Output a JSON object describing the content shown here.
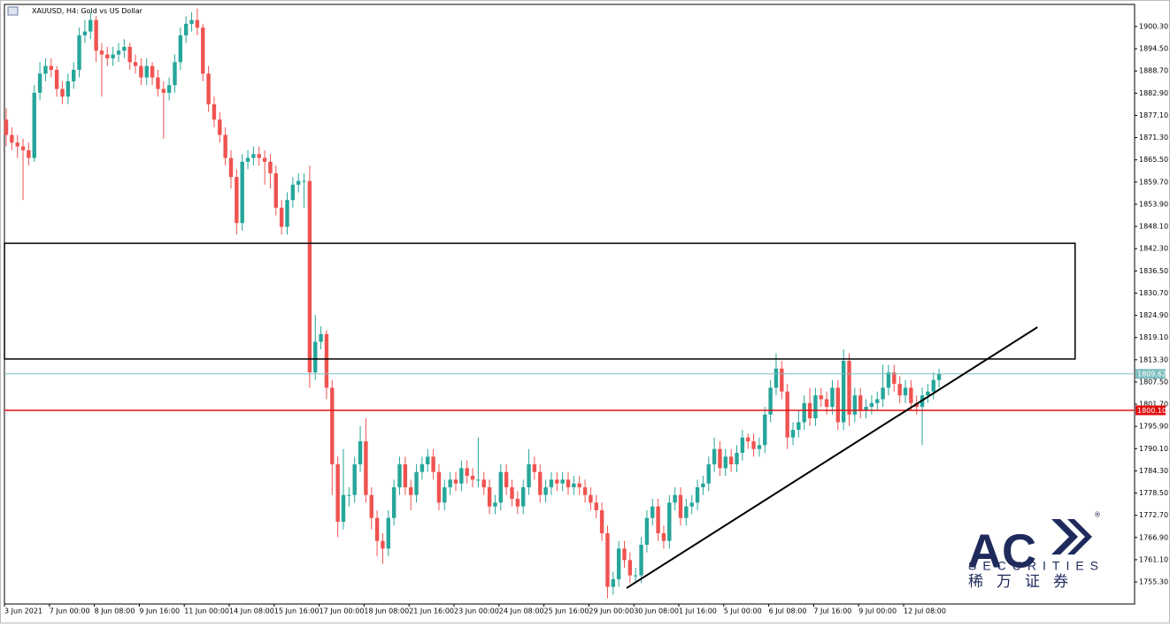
{
  "chart_data": {
    "type": "candlestick",
    "title": "XAUUSD, H4:  Gold vs US Dollar",
    "categories": [
      "3 Jun 2021",
      null,
      null,
      null,
      null,
      null,
      null,
      null,
      "7 Jun 00:00",
      null,
      null,
      null,
      null,
      null,
      null,
      null,
      "8 Jun 08:00",
      null,
      null,
      null,
      null,
      null,
      null,
      null,
      "9 Jun 16:00",
      null,
      null,
      null,
      null,
      null,
      null,
      null,
      "11 Jun 00:00",
      null,
      null,
      null,
      null,
      null,
      null,
      null,
      "14 Jun 08:00",
      null,
      null,
      null,
      null,
      null,
      null,
      null,
      "15 Jun 16:00",
      null,
      null,
      null,
      null,
      null,
      null,
      null,
      "17 Jun 00:00",
      null,
      null,
      null,
      null,
      null,
      null,
      null,
      "18 Jun 08:00",
      null,
      null,
      null,
      null,
      null,
      null,
      null,
      "21 Jun 16:00",
      null,
      null,
      null,
      null,
      null,
      null,
      null,
      "23 Jun 00:00",
      null,
      null,
      null,
      null,
      null,
      null,
      null,
      "24 Jun 08:00",
      null,
      null,
      null,
      null,
      null,
      null,
      null,
      "25 Jun 16:00",
      null,
      null,
      null,
      null,
      null,
      null,
      null,
      "29 Jun 00:00",
      null,
      null,
      null,
      null,
      null,
      null,
      null,
      "30 Jun 08:00",
      null,
      null,
      null,
      null,
      null,
      null,
      null,
      "1 Jul 16:00",
      null,
      null,
      null,
      null,
      null,
      null,
      null,
      "5 Jul 00:00",
      null,
      null,
      null,
      null,
      null,
      null,
      null,
      "6 Jul 08:00",
      null,
      null,
      null,
      null,
      null,
      null,
      null,
      "7 Jul 16:00",
      null,
      null,
      null,
      null,
      null,
      null,
      null,
      "9 Jul 00:00",
      null,
      null,
      null,
      null,
      null,
      null,
      null,
      "12 Jul 08:00",
      null,
      null,
      null,
      null,
      null,
      null
    ],
    "open": [
      1876,
      1872,
      1870,
      1869,
      1868,
      1866,
      1883,
      1888,
      1890,
      1889,
      1884,
      1882,
      1886,
      1889,
      1898,
      1899,
      1902,
      1894,
      1893,
      1892,
      1893,
      1894,
      1895,
      1891,
      1890,
      1887,
      1890,
      1887,
      1884,
      1883,
      1885,
      1891,
      1898,
      1901,
      1902,
      1900,
      1888,
      1880,
      1876,
      1872,
      1866,
      1861,
      1849,
      1865,
      1866,
      1867,
      1866,
      1865,
      1862,
      1853,
      1848,
      1855,
      1859,
      1860,
      1860,
      1810,
      1818,
      1820,
      1806,
      1786,
      1771,
      1778,
      1778,
      1786,
      1792,
      1778,
      1772,
      1766,
      1764,
      1772,
      1780,
      1786,
      1780,
      1778,
      1784,
      1786,
      1788,
      1784,
      1776,
      1780,
      1782,
      1781,
      1785,
      1783,
      1782,
      1782,
      1780,
      1775,
      1776,
      1784,
      1780,
      1777,
      1775,
      1780,
      1786,
      1784,
      1778,
      1780,
      1782,
      1781,
      1782,
      1780,
      1781,
      1780,
      1778,
      1776,
      1774,
      1768,
      1754,
      1756,
      1764,
      1761,
      1757,
      1757,
      1765,
      1772,
      1775,
      1768,
      1766,
      1776,
      1778,
      1772,
      1775,
      1776,
      1780,
      1781,
      1786,
      1790,
      1785,
      1788,
      1786,
      1789,
      1793,
      1792,
      1790,
      1791,
      1799,
      1806,
      1811,
      1805,
      1793,
      1795,
      1797,
      1802,
      1798,
      1804,
      1803,
      1801,
      1806,
      1797,
      1813,
      1799,
      1804,
      1800,
      1801,
      1802,
      1803,
      1806,
      1810,
      1807,
      1804,
      1806,
      1802,
      1801,
      1804,
      1805,
      1808
    ],
    "high": [
      1879,
      1874,
      1872,
      1871,
      1870,
      1885,
      1891,
      1892,
      1892,
      1890,
      1886,
      1888,
      1891,
      1900,
      1902,
      1904,
      1903,
      1896,
      1895,
      1895,
      1896,
      1897,
      1896,
      1893,
      1892,
      1892,
      1891,
      1889,
      1886,
      1887,
      1893,
      1900,
      1903,
      1904,
      1905,
      1901,
      1890,
      1882,
      1878,
      1874,
      1868,
      1863,
      1867,
      1868,
      1869,
      1869,
      1868,
      1867,
      1864,
      1855,
      1857,
      1861,
      1862,
      1862,
      1864,
      1825,
      1822,
      1821,
      1808,
      1788,
      1790,
      1780,
      1788,
      1796,
      1798,
      1780,
      1774,
      1768,
      1774,
      1782,
      1788,
      1788,
      1782,
      1786,
      1788,
      1790,
      1790,
      1786,
      1782,
      1784,
      1784,
      1787,
      1787,
      1785,
      1793,
      1784,
      1782,
      1778,
      1786,
      1786,
      1782,
      1779,
      1782,
      1790,
      1788,
      1786,
      1782,
      1784,
      1784,
      1784,
      1784,
      1783,
      1783,
      1782,
      1780,
      1778,
      1776,
      1770,
      1758,
      1766,
      1766,
      1763,
      1759,
      1767,
      1774,
      1777,
      1777,
      1770,
      1778,
      1780,
      1780,
      1777,
      1778,
      1782,
      1783,
      1788,
      1793,
      1792,
      1790,
      1790,
      1791,
      1795,
      1794,
      1794,
      1793,
      1801,
      1808,
      1815,
      1813,
      1807,
      1797,
      1800,
      1804,
      1806,
      1806,
      1806,
      1805,
      1808,
      1808,
      1816,
      1815,
      1806,
      1806,
      1803,
      1804,
      1805,
      1812,
      1812,
      1812,
      1809,
      1808,
      1808,
      1804,
      1806,
      1807,
      1810,
      1811
    ],
    "low": [
      1869,
      1868,
      1866,
      1855,
      1864,
      1865,
      1881,
      1886,
      1887,
      1882,
      1880,
      1880,
      1884,
      1887,
      1896,
      1897,
      1891,
      1882,
      1890,
      1890,
      1891,
      1892,
      1889,
      1888,
      1885,
      1885,
      1885,
      1882,
      1871,
      1881,
      1883,
      1889,
      1896,
      1899,
      1898,
      1886,
      1878,
      1874,
      1870,
      1864,
      1858,
      1846,
      1847,
      1863,
      1864,
      1864,
      1859,
      1858,
      1851,
      1846,
      1846,
      1853,
      1857,
      1853,
      1806,
      1808,
      1816,
      1803,
      1778,
      1767,
      1769,
      1775,
      1776,
      1784,
      1776,
      1769,
      1762,
      1760,
      1762,
      1770,
      1778,
      1778,
      1774,
      1776,
      1782,
      1784,
      1782,
      1774,
      1774,
      1778,
      1779,
      1779,
      1781,
      1780,
      1780,
      1778,
      1773,
      1773,
      1774,
      1778,
      1775,
      1773,
      1773,
      1778,
      1782,
      1776,
      1776,
      1778,
      1779,
      1779,
      1778,
      1778,
      1778,
      1776,
      1774,
      1772,
      1766,
      1751,
      1752,
      1754,
      1759,
      1755,
      1755,
      1755,
      1763,
      1770,
      1766,
      1764,
      1764,
      1774,
      1770,
      1770,
      1773,
      1774,
      1778,
      1779,
      1784,
      1783,
      1783,
      1784,
      1784,
      1787,
      1790,
      1788,
      1788,
      1789,
      1797,
      1804,
      1803,
      1790,
      1791,
      1793,
      1795,
      1796,
      1796,
      1801,
      1799,
      1799,
      1795,
      1795,
      1796,
      1797,
      1798,
      1798,
      1799,
      1800,
      1801,
      1804,
      1805,
      1802,
      1802,
      1800,
      1799,
      1791,
      1802,
      1803,
      1806
    ],
    "close": [
      1872,
      1870,
      1869,
      1868,
      1866,
      1883,
      1888,
      1890,
      1889,
      1884,
      1882,
      1886,
      1889,
      1898,
      1899,
      1902,
      1894,
      1893,
      1892,
      1893,
      1894,
      1895,
      1891,
      1890,
      1887,
      1890,
      1887,
      1884,
      1883,
      1885,
      1891,
      1898,
      1901,
      1902,
      1900,
      1888,
      1880,
      1876,
      1872,
      1866,
      1861,
      1849,
      1865,
      1866,
      1867,
      1866,
      1865,
      1862,
      1853,
      1848,
      1855,
      1859,
      1860,
      1860,
      1810,
      1818,
      1820,
      1806,
      1786,
      1771,
      1778,
      1778,
      1786,
      1792,
      1778,
      1772,
      1766,
      1764,
      1772,
      1780,
      1786,
      1780,
      1778,
      1784,
      1786,
      1788,
      1784,
      1776,
      1780,
      1782,
      1781,
      1785,
      1783,
      1782,
      1782,
      1780,
      1775,
      1776,
      1784,
      1780,
      1777,
      1775,
      1780,
      1786,
      1784,
      1778,
      1780,
      1782,
      1781,
      1782,
      1780,
      1781,
      1780,
      1778,
      1776,
      1774,
      1768,
      1754,
      1756,
      1764,
      1761,
      1757,
      1757,
      1765,
      1772,
      1775,
      1768,
      1766,
      1776,
      1778,
      1772,
      1775,
      1776,
      1780,
      1781,
      1786,
      1790,
      1785,
      1788,
      1786,
      1789,
      1793,
      1792,
      1790,
      1791,
      1799,
      1806,
      1811,
      1805,
      1793,
      1795,
      1797,
      1802,
      1798,
      1804,
      1803,
      1801,
      1806,
      1797,
      1813,
      1799,
      1804,
      1800,
      1801,
      1802,
      1803,
      1806,
      1810,
      1807,
      1804,
      1806,
      1802,
      1801,
      1804,
      1805,
      1808,
      1809.62
    ],
    "up_color": "#26a69a",
    "down_color": "#ef5350",
    "ylim": [
      1749.53,
      1906.07
    ],
    "yticks": [
      {
        "value": 1900.3,
        "label": "1900.30"
      },
      {
        "value": 1894.5,
        "label": "1894.50"
      },
      {
        "value": 1888.7,
        "label": "1888.70"
      },
      {
        "value": 1882.9,
        "label": "1882.90"
      },
      {
        "value": 1877.1,
        "label": "1877.10"
      },
      {
        "value": 1871.3,
        "label": "1871.30"
      },
      {
        "value": 1865.5,
        "label": "1865.50"
      },
      {
        "value": 1859.7,
        "label": "1859.70"
      },
      {
        "value": 1853.9,
        "label": "1853.90"
      },
      {
        "value": 1848.1,
        "label": "1848.10"
      },
      {
        "value": 1842.3,
        "label": "1842.30"
      },
      {
        "value": 1836.5,
        "label": "1836.50"
      },
      {
        "value": 1830.7,
        "label": "1830.70"
      },
      {
        "value": 1824.9,
        "label": "1824.90"
      },
      {
        "value": 1819.1,
        "label": "1819.10"
      },
      {
        "value": 1813.3,
        "label": "1813.30"
      },
      {
        "value": 1807.5,
        "label": "1807.50"
      },
      {
        "value": 1801.7,
        "label": "1801.70"
      },
      {
        "value": 1795.9,
        "label": "1795.90"
      },
      {
        "value": 1790.1,
        "label": "1790.10"
      },
      {
        "value": 1784.3,
        "label": "1784.30"
      },
      {
        "value": 1778.5,
        "label": "1778.50"
      },
      {
        "value": 1772.7,
        "label": "1772.70"
      },
      {
        "value": 1766.9,
        "label": "1766.90"
      },
      {
        "value": 1761.1,
        "label": "1761.10"
      },
      {
        "value": 1755.3,
        "label": "1755.30"
      }
    ],
    "price_lines": [
      {
        "value": 1809.62,
        "label": "1809.62",
        "color": "#7fbfbf"
      },
      {
        "value": 1800.1,
        "label": "1800.10",
        "color": "#e01010"
      }
    ],
    "rectangle": {
      "x": [
        -0.3,
        190.2
      ],
      "y": [
        1813.5,
        1843.7
      ],
      "color": "#000000"
    },
    "trend_line": {
      "x": [
        110.4,
        183.5
      ],
      "y": [
        1753.7,
        1821.8
      ],
      "color": "#000000"
    }
  },
  "logo": {
    "brand": "AC",
    "mark": "®",
    "subtitle": "SECURITIES",
    "chinese": "稀万证券"
  }
}
